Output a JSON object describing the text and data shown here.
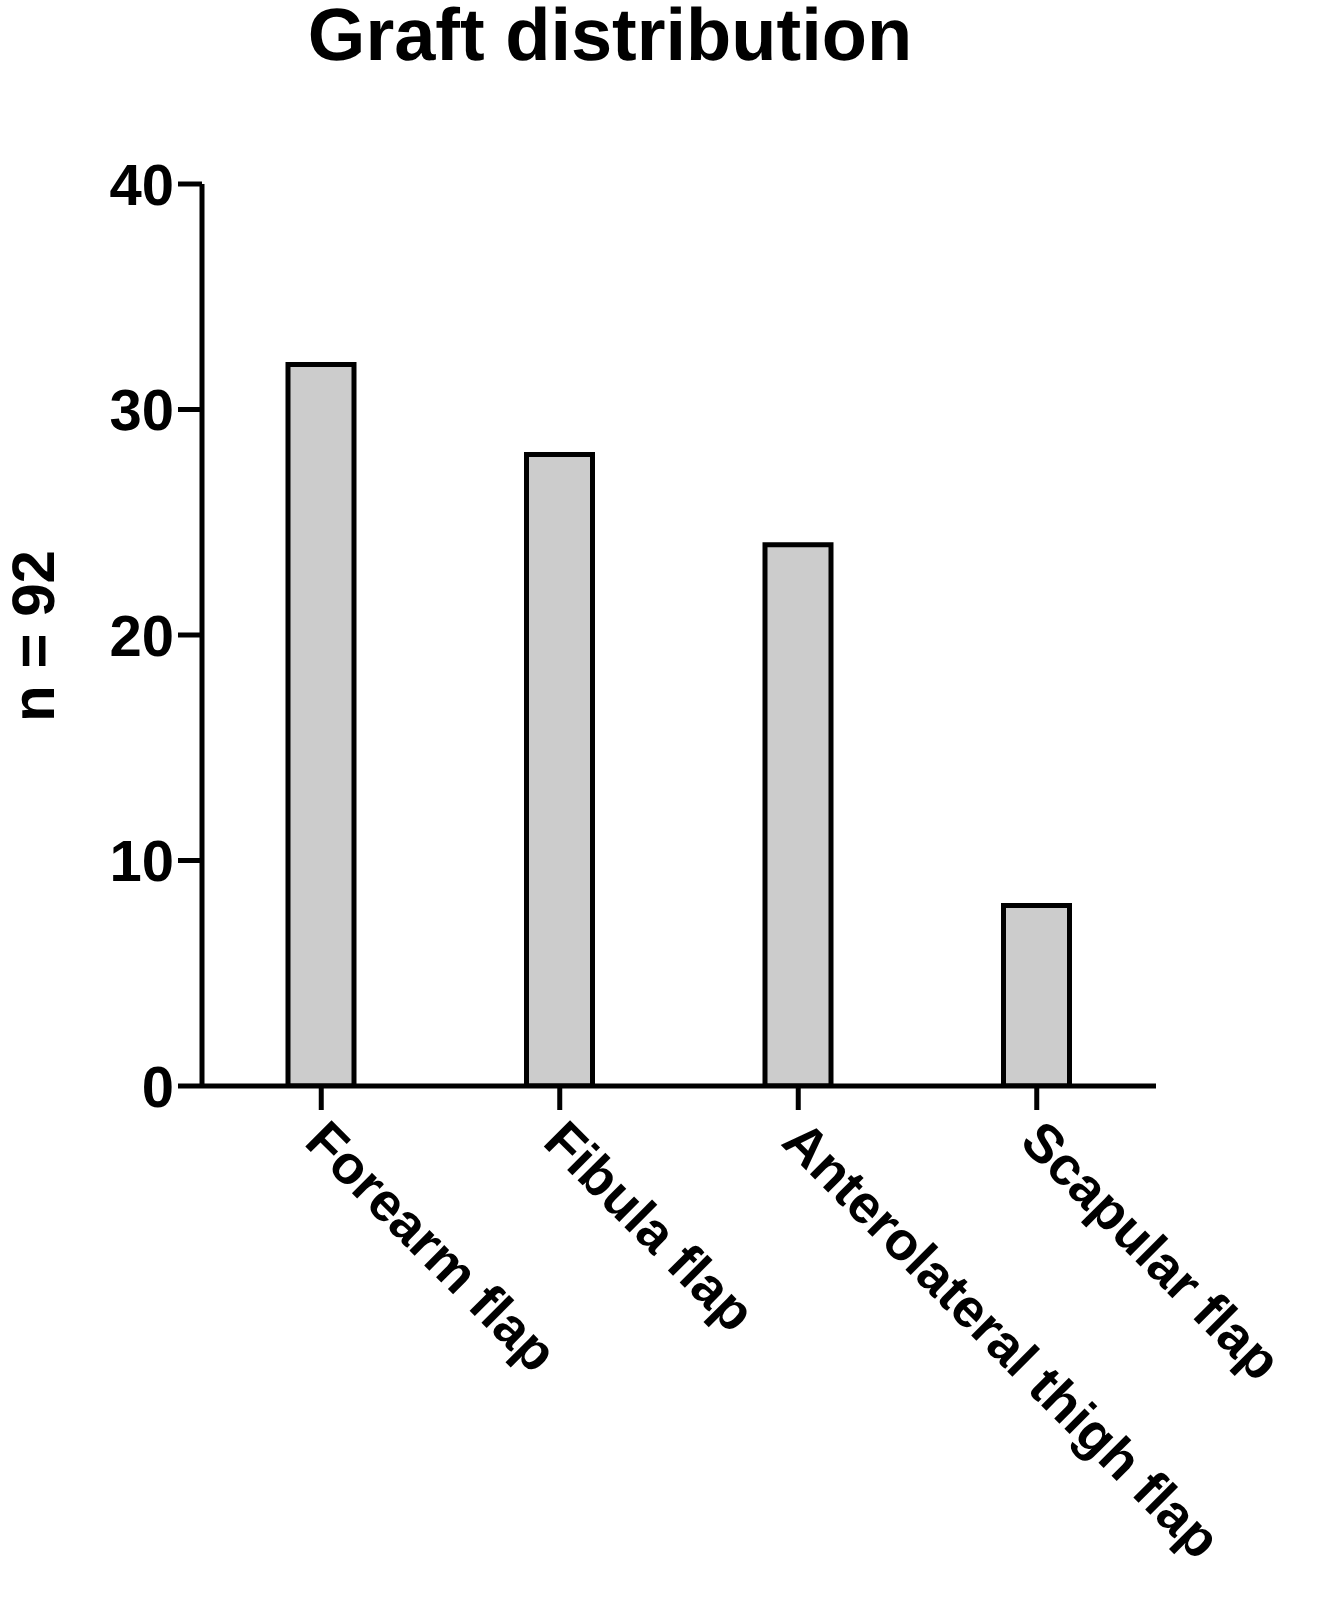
{
  "chart_data": {
    "type": "bar",
    "title": "Graft distribution",
    "ylabel": "n = 92",
    "categories": [
      "Forearm flap",
      "Fibula flap",
      "Anterolateral thigh flap",
      "Scapular flap"
    ],
    "values": [
      32,
      28,
      24,
      8
    ],
    "color": "#cccccc",
    "ylim": [
      0,
      40
    ],
    "yticks": [
      0,
      10,
      20,
      30,
      40
    ]
  }
}
